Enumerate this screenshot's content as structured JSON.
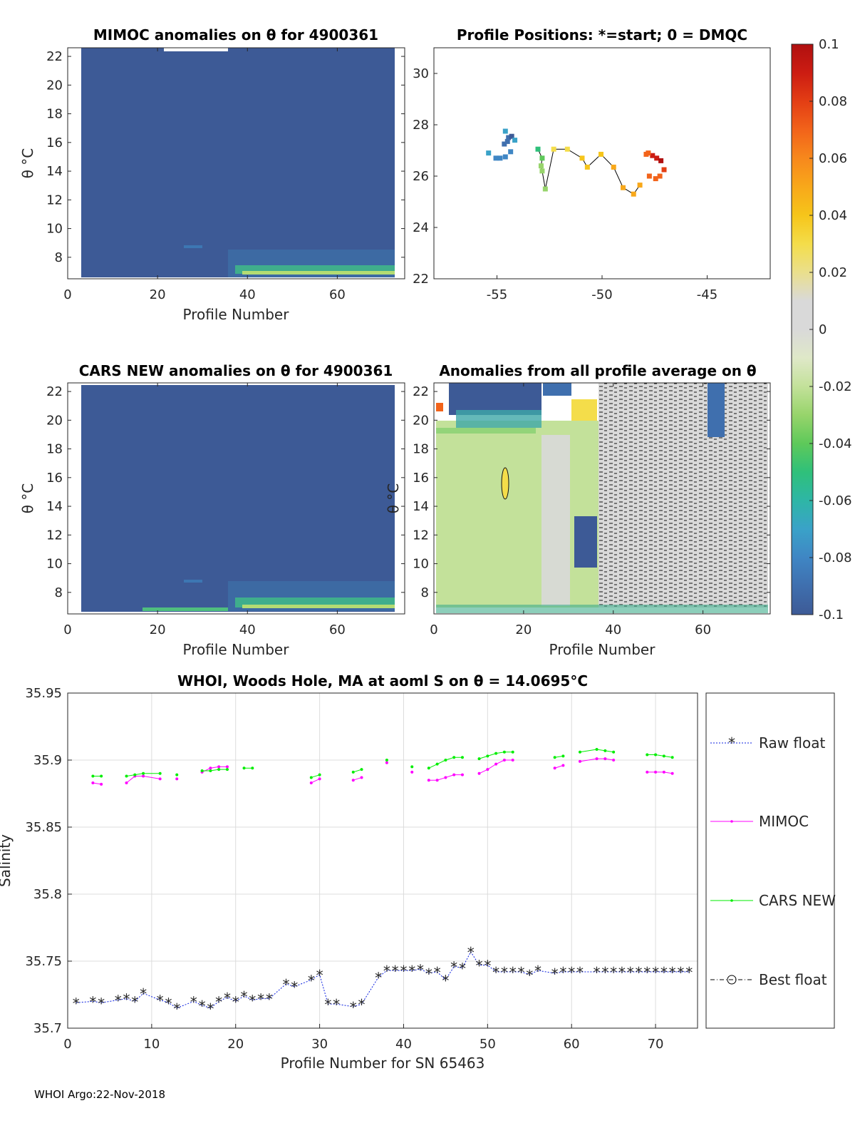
{
  "footer": "WHOI Argo:22-Nov-2018",
  "colorbar": {
    "ticks": [
      "0.1",
      "0.08",
      "0.06",
      "0.04",
      "0.02",
      "0",
      "-0.02",
      "-0.04",
      "-0.06",
      "-0.08",
      "-0.1"
    ],
    "range": [
      -0.1,
      0.1
    ],
    "colors": [
      "#3d5a96",
      "#3f6fae",
      "#3f86c4",
      "#3aa2c8",
      "#2eb6a6",
      "#2fc07a",
      "#5ec95a",
      "#97d46b",
      "#c3e19a",
      "#dfe8c8",
      "#d9d9d9",
      "#d9d9d9",
      "#eadf8c",
      "#f4dd4a",
      "#f6c51a",
      "#f8a81a",
      "#f7881c",
      "#f2631a",
      "#e33e14",
      "#cc1c12",
      "#b01010"
    ]
  },
  "chart_data": [
    {
      "id": "mimoc",
      "type": "heatmap",
      "title": "MIMOC anomalies on θ  for 4900361",
      "xlabel": "Profile Number",
      "ylabel": "θ °C",
      "xlim": [
        0,
        75
      ],
      "ylim": [
        6.5,
        22.6
      ],
      "xticks": [
        "0",
        "20",
        "40",
        "60"
      ],
      "yticks": [
        "8",
        "10",
        "12",
        "14",
        "16",
        "18",
        "20",
        "22"
      ]
    },
    {
      "id": "positions",
      "type": "scatter",
      "title": "Profile Positions: *=start; 0 = DMQC",
      "xlim": [
        -58,
        -42
      ],
      "ylim": [
        22,
        31
      ],
      "xticks": [
        "-55",
        "-50",
        "-45"
      ],
      "yticks": [
        "22",
        "24",
        "26",
        "28",
        "30"
      ],
      "points": [
        {
          "lon": -54.6,
          "lat": 27.75,
          "v": -0.07
        },
        {
          "lon": -54.45,
          "lat": 27.5,
          "v": -0.095
        },
        {
          "lon": -54.3,
          "lat": 27.55,
          "v": -0.1
        },
        {
          "lon": -54.5,
          "lat": 27.35,
          "v": -0.09
        },
        {
          "lon": -54.65,
          "lat": 27.25,
          "v": -0.09
        },
        {
          "lon": -54.15,
          "lat": 27.4,
          "v": -0.07
        },
        {
          "lon": -54.35,
          "lat": 26.95,
          "v": -0.08
        },
        {
          "lon": -54.6,
          "lat": 26.75,
          "v": -0.08
        },
        {
          "lon": -54.85,
          "lat": 26.7,
          "v": -0.08
        },
        {
          "lon": -55.05,
          "lat": 26.7,
          "v": -0.08
        },
        {
          "lon": -55.4,
          "lat": 26.9,
          "v": -0.075
        },
        {
          "lon": -53.05,
          "lat": 27.05,
          "v": -0.05
        },
        {
          "lon": -52.85,
          "lat": 26.7,
          "v": -0.04
        },
        {
          "lon": -52.9,
          "lat": 26.4,
          "v": -0.03
        },
        {
          "lon": -52.85,
          "lat": 26.2,
          "v": -0.03
        },
        {
          "lon": -52.7,
          "lat": 25.5,
          "v": -0.035
        },
        {
          "lon": -52.3,
          "lat": 27.05,
          "v": 0.03
        },
        {
          "lon": -51.65,
          "lat": 27.05,
          "v": 0.03
        },
        {
          "lon": -50.95,
          "lat": 26.7,
          "v": 0.035
        },
        {
          "lon": -50.7,
          "lat": 26.35,
          "v": 0.035
        },
        {
          "lon": -50.05,
          "lat": 26.85,
          "v": 0.04
        },
        {
          "lon": -49.45,
          "lat": 26.35,
          "v": 0.045
        },
        {
          "lon": -49.0,
          "lat": 25.55,
          "v": 0.05
        },
        {
          "lon": -48.5,
          "lat": 25.3,
          "v": 0.055
        },
        {
          "lon": -48.2,
          "lat": 25.65,
          "v": 0.05
        },
        {
          "lon": -47.9,
          "lat": 26.85,
          "v": 0.065
        },
        {
          "lon": -47.6,
          "lat": 26.8,
          "v": 0.085
        },
        {
          "lon": -47.4,
          "lat": 26.7,
          "v": 0.09
        },
        {
          "lon": -47.2,
          "lat": 26.6,
          "v": 0.1
        },
        {
          "lon": -47.05,
          "lat": 26.25,
          "v": 0.08
        },
        {
          "lon": -47.25,
          "lat": 26.0,
          "v": 0.075
        },
        {
          "lon": -47.45,
          "lat": 25.9,
          "v": 0.07
        },
        {
          "lon": -47.75,
          "lat": 26.0,
          "v": 0.075
        },
        {
          "lon": -47.8,
          "lat": 26.9,
          "v": 0.07
        }
      ]
    },
    {
      "id": "cars",
      "type": "heatmap",
      "title": "CARS NEW anomalies on θ for 4900361",
      "xlabel": "Profile Number",
      "ylabel": "θ °C",
      "xlim": [
        0,
        75
      ],
      "ylim": [
        6.5,
        22.6
      ],
      "xticks": [
        "0",
        "20",
        "40",
        "60"
      ],
      "yticks": [
        "8",
        "10",
        "12",
        "14",
        "16",
        "18",
        "20",
        "22"
      ]
    },
    {
      "id": "allprofile",
      "type": "heatmap",
      "title": "Anomalies from all profile average on θ",
      "xlabel": "Profile Number",
      "ylabel": "θ °C",
      "xlim": [
        0,
        75
      ],
      "ylim": [
        6.5,
        22.6
      ],
      "xticks": [
        "0",
        "20",
        "40",
        "60"
      ],
      "yticks": [
        "8",
        "10",
        "12",
        "14",
        "16",
        "18",
        "20",
        "22"
      ]
    },
    {
      "id": "salinity",
      "type": "line",
      "title": "WHOI, Woods Hole, MA at aoml S on θ = 14.0695°C",
      "xlabel": "Profile Number for SN 65463",
      "ylabel": "Salinity",
      "xlim": [
        0,
        75
      ],
      "ylim": [
        35.7,
        35.95
      ],
      "xticks": [
        "0",
        "10",
        "20",
        "30",
        "40",
        "50",
        "60",
        "70"
      ],
      "yticks": [
        "35.7",
        "35.75",
        "35.8",
        "35.85",
        "35.9",
        "35.95"
      ],
      "legend": [
        "Raw float",
        "MIMOC",
        "CARS NEW",
        "Best float"
      ],
      "raw_x": [
        1,
        3,
        4,
        6,
        7,
        8,
        9,
        11,
        12,
        13,
        15,
        16,
        17,
        18,
        19,
        20,
        21,
        22,
        23,
        24,
        26,
        27,
        29,
        30,
        31,
        32,
        34,
        35,
        37,
        38,
        39,
        40,
        41,
        42,
        43,
        44,
        45,
        46,
        47,
        48,
        49,
        50,
        51,
        52,
        53,
        54,
        55,
        56,
        58,
        59,
        60,
        61,
        63,
        64,
        65,
        66,
        67,
        68,
        69,
        70,
        71,
        72,
        73,
        74
      ],
      "raw_y": [
        35.719,
        35.72,
        35.719,
        35.721,
        35.722,
        35.72,
        35.726,
        35.721,
        35.719,
        35.715,
        35.72,
        35.717,
        35.715,
        35.72,
        35.723,
        35.72,
        35.724,
        35.721,
        35.722,
        35.722,
        35.733,
        35.731,
        35.736,
        35.74,
        35.718,
        35.718,
        35.716,
        35.718,
        35.738,
        35.743,
        35.743,
        35.743,
        35.743,
        35.744,
        35.741,
        35.742,
        35.736,
        35.746,
        35.745,
        35.757,
        35.747,
        35.747,
        35.742,
        35.742,
        35.742,
        35.742,
        35.74,
        35.743,
        35.741,
        35.742,
        35.742,
        35.742,
        35.742,
        35.742,
        35.742,
        35.742,
        35.742,
        35.742,
        35.742,
        35.742,
        35.742,
        35.742,
        35.742,
        35.742
      ],
      "mimoc_segments": [
        [
          [
            3,
            35.883
          ],
          [
            4,
            35.882
          ]
        ],
        [
          [
            7,
            35.883
          ],
          [
            8,
            35.888
          ],
          [
            9,
            35.888
          ],
          [
            11,
            35.886
          ]
        ],
        [
          [
            13,
            35.886
          ]
        ],
        [
          [
            16,
            35.891
          ],
          [
            17,
            35.894
          ],
          [
            18,
            35.895
          ],
          [
            19,
            35.895
          ]
        ],
        [
          [
            29,
            35.883
          ],
          [
            30,
            35.886
          ]
        ],
        [
          [
            34,
            35.885
          ],
          [
            35,
            35.887
          ]
        ],
        [
          [
            38,
            35.898
          ]
        ],
        [
          [
            41,
            35.891
          ]
        ],
        [
          [
            43,
            35.885
          ],
          [
            44,
            35.885
          ],
          [
            45,
            35.887
          ],
          [
            46,
            35.889
          ],
          [
            47,
            35.889
          ]
        ],
        [
          [
            49,
            35.89
          ],
          [
            50,
            35.893
          ],
          [
            51,
            35.897
          ],
          [
            52,
            35.9
          ],
          [
            53,
            35.9
          ]
        ],
        [
          [
            58,
            35.894
          ],
          [
            59,
            35.896
          ]
        ],
        [
          [
            61,
            35.899
          ],
          [
            63,
            35.901
          ],
          [
            64,
            35.901
          ],
          [
            65,
            35.9
          ]
        ],
        [
          [
            69,
            35.891
          ],
          [
            70,
            35.891
          ],
          [
            71,
            35.891
          ],
          [
            72,
            35.89
          ]
        ]
      ],
      "cars_segments": [
        [
          [
            3,
            35.888
          ],
          [
            4,
            35.888
          ]
        ],
        [
          [
            7,
            35.888
          ],
          [
            8,
            35.889
          ],
          [
            9,
            35.89
          ],
          [
            11,
            35.89
          ]
        ],
        [
          [
            13,
            35.889
          ]
        ],
        [
          [
            16,
            35.892
          ],
          [
            17,
            35.892
          ],
          [
            18,
            35.893
          ],
          [
            19,
            35.893
          ]
        ],
        [
          [
            21,
            35.894
          ],
          [
            22,
            35.894
          ]
        ],
        [
          [
            29,
            35.887
          ],
          [
            30,
            35.889
          ]
        ],
        [
          [
            34,
            35.891
          ],
          [
            35,
            35.893
          ]
        ],
        [
          [
            38,
            35.9
          ]
        ],
        [
          [
            41,
            35.895
          ]
        ],
        [
          [
            43,
            35.894
          ],
          [
            44,
            35.897
          ],
          [
            45,
            35.9
          ],
          [
            46,
            35.902
          ],
          [
            47,
            35.902
          ]
        ],
        [
          [
            49,
            35.901
          ],
          [
            50,
            35.903
          ],
          [
            51,
            35.905
          ],
          [
            52,
            35.906
          ],
          [
            53,
            35.906
          ]
        ],
        [
          [
            58,
            35.902
          ],
          [
            59,
            35.903
          ]
        ],
        [
          [
            61,
            35.906
          ],
          [
            63,
            35.908
          ],
          [
            64,
            35.907
          ],
          [
            65,
            35.906
          ]
        ],
        [
          [
            69,
            35.904
          ],
          [
            70,
            35.904
          ],
          [
            71,
            35.903
          ],
          [
            72,
            35.902
          ]
        ]
      ]
    }
  ]
}
